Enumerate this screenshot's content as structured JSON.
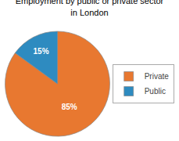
{
  "chart_data": {
    "type": "pie",
    "title": "Employment by public or private sector\nin London",
    "categories": [
      "Private",
      "Public"
    ],
    "values": [
      85,
      15
    ],
    "value_labels": [
      "85%",
      "15%"
    ],
    "colors": [
      "#E87830",
      "#2E8BC0"
    ],
    "data_labels": true,
    "legend": "right"
  }
}
